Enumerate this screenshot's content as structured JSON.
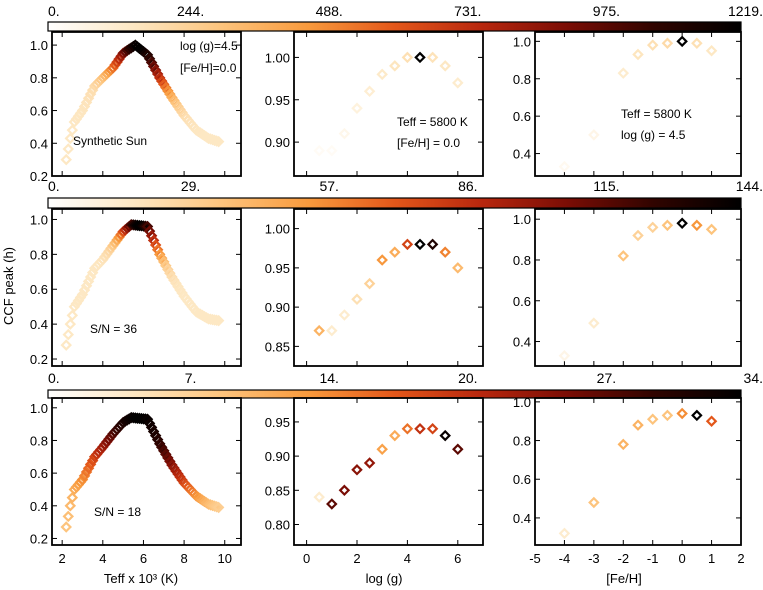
{
  "colormap": [
    "#ffffff",
    "#fde7c2",
    "#fdc47d",
    "#f89a3d",
    "#e3571a",
    "#b8270e",
    "#7a0d05",
    "#300400",
    "#000000"
  ],
  "shared": {
    "y_axis_label": "CCF peak (h)",
    "x_axis_labels": [
      "Teff x 10³ (K)",
      "log (g)",
      "[Fe/H]"
    ],
    "x_ticks": {
      "teff": [
        "2",
        "4",
        "6",
        "8",
        "10"
      ],
      "logg": [
        "0",
        "2",
        "4",
        "6"
      ],
      "feh": [
        "-5",
        "-4",
        "-3",
        "-2",
        "-1",
        "0",
        "1",
        "2"
      ]
    }
  },
  "chart_data": [
    {
      "type": "scatter",
      "row": 1,
      "colorbar": {
        "ticks": [
          "0.",
          "244.",
          "488.",
          "731.",
          "975.",
          "1219."
        ],
        "range": [
          0,
          1219
        ]
      },
      "panels": [
        {
          "x_variable": "Teff (10^3 K)",
          "xlim": [
            1.5,
            10.8
          ],
          "ylim": [
            0.2,
            1.08
          ],
          "y_ticks": [
            "0.2",
            "0.4",
            "0.6",
            "0.8",
            "1.0"
          ],
          "annotations": [
            "log (g)=4.5",
            "[Fe/H]=0.0",
            "Synthetic Sun"
          ],
          "profile": [
            [
              2.2,
              0.3
            ],
            [
              2.4,
              0.43
            ],
            [
              2.6,
              0.53
            ],
            [
              3.0,
              0.6
            ],
            [
              3.6,
              0.75
            ],
            [
              4.0,
              0.8
            ],
            [
              4.5,
              0.86
            ],
            [
              5.0,
              0.95
            ],
            [
              5.6,
              1.0
            ],
            [
              6.2,
              0.94
            ],
            [
              6.8,
              0.8
            ],
            [
              7.4,
              0.68
            ],
            [
              8.0,
              0.57
            ],
            [
              8.6,
              0.48
            ],
            [
              9.2,
              0.43
            ],
            [
              9.7,
              0.41
            ]
          ],
          "peak_x": 5.8,
          "x_step": 0.1,
          "sigma": 1.3
        },
        {
          "x_variable": "log (g)",
          "xlim": [
            -0.5,
            7.0
          ],
          "ylim": [
            0.86,
            1.03
          ],
          "y_ticks": [
            "0.90",
            "0.95",
            "1.00"
          ],
          "annotations": [
            "Teff = 5800 K",
            "[Fe/H] = 0.0"
          ],
          "points": [
            [
              0.5,
              0.89,
              0.02
            ],
            [
              1.0,
              0.89,
              0.02
            ],
            [
              1.5,
              0.91,
              0.04
            ],
            [
              2.0,
              0.94,
              0.07
            ],
            [
              2.5,
              0.96,
              0.09
            ],
            [
              3.0,
              0.98,
              0.11
            ],
            [
              3.5,
              0.99,
              0.13
            ],
            [
              4.0,
              1.0,
              0.15
            ],
            [
              4.5,
              1.0,
              1.0
            ],
            [
              5.0,
              1.0,
              0.14
            ],
            [
              5.5,
              0.99,
              0.12
            ],
            [
              6.0,
              0.97,
              0.1
            ]
          ]
        },
        {
          "x_variable": "[Fe/H]",
          "xlim": [
            -5,
            2
          ],
          "ylim": [
            0.28,
            1.05
          ],
          "y_ticks": [
            "0.4",
            "0.6",
            "0.8",
            "1.0"
          ],
          "annotations": [
            "Teff = 5800 K",
            "log (g) = 4.5"
          ],
          "points": [
            [
              -4.0,
              0.33,
              0.03
            ],
            [
              -3.0,
              0.5,
              0.05
            ],
            [
              -2.0,
              0.83,
              0.1
            ],
            [
              -1.5,
              0.93,
              0.13
            ],
            [
              -1.0,
              0.98,
              0.15
            ],
            [
              -0.5,
              0.99,
              0.17
            ],
            [
              0.0,
              1.0,
              1.0
            ],
            [
              0.5,
              0.99,
              0.15
            ],
            [
              1.0,
              0.95,
              0.12
            ]
          ]
        }
      ]
    },
    {
      "type": "scatter",
      "row": 2,
      "colorbar": {
        "ticks": [
          "0.",
          "29.",
          "57.",
          "86.",
          "115.",
          "144."
        ],
        "range": [
          0,
          144
        ]
      },
      "panels": [
        {
          "x_variable": "Teff (10^3 K)",
          "xlim": [
            1.5,
            10.8
          ],
          "ylim": [
            0.16,
            1.06
          ],
          "y_ticks": [
            "0.2",
            "0.4",
            "0.6",
            "0.8",
            "1.0"
          ],
          "annotations": [
            "S/N = 36"
          ],
          "profile": [
            [
              2.2,
              0.28
            ],
            [
              2.4,
              0.4
            ],
            [
              2.6,
              0.5
            ],
            [
              3.0,
              0.57
            ],
            [
              3.6,
              0.72
            ],
            [
              4.0,
              0.77
            ],
            [
              4.5,
              0.85
            ],
            [
              5.0,
              0.93
            ],
            [
              5.4,
              0.97
            ],
            [
              6.2,
              0.96
            ],
            [
              6.8,
              0.8
            ],
            [
              7.4,
              0.67
            ],
            [
              8.0,
              0.56
            ],
            [
              8.6,
              0.47
            ],
            [
              9.2,
              0.43
            ],
            [
              9.7,
              0.42
            ]
          ],
          "peak_x": 5.8,
          "x_step": 0.1,
          "sigma": 0.9
        },
        {
          "x_variable": "log (g)",
          "xlim": [
            -0.5,
            7.0
          ],
          "ylim": [
            0.825,
            1.025
          ],
          "y_ticks": [
            "0.85",
            "0.90",
            "0.95",
            "1.00"
          ],
          "annotations": [],
          "points": [
            [
              0.5,
              0.87,
              0.3
            ],
            [
              1.0,
              0.87,
              0.1
            ],
            [
              1.5,
              0.89,
              0.1
            ],
            [
              2.0,
              0.91,
              0.15
            ],
            [
              2.5,
              0.93,
              0.2
            ],
            [
              3.0,
              0.96,
              0.38
            ],
            [
              3.5,
              0.97,
              0.32
            ],
            [
              4.0,
              0.98,
              0.55
            ],
            [
              4.5,
              0.98,
              1.0
            ],
            [
              5.0,
              0.98,
              0.92
            ],
            [
              5.5,
              0.97,
              0.42
            ],
            [
              6.0,
              0.95,
              0.28
            ]
          ]
        },
        {
          "x_variable": "[Fe/H]",
          "xlim": [
            -5,
            2
          ],
          "ylim": [
            0.28,
            1.05
          ],
          "y_ticks": [
            "0.4",
            "0.6",
            "0.8",
            "1.0"
          ],
          "annotations": [],
          "points": [
            [
              -4.0,
              0.33,
              0.05
            ],
            [
              -3.0,
              0.49,
              0.1
            ],
            [
              -2.0,
              0.82,
              0.25
            ],
            [
              -1.5,
              0.92,
              0.2
            ],
            [
              -1.0,
              0.96,
              0.2
            ],
            [
              -0.5,
              0.97,
              0.25
            ],
            [
              0.0,
              0.98,
              1.0
            ],
            [
              0.5,
              0.97,
              0.38
            ],
            [
              1.0,
              0.95,
              0.25
            ]
          ]
        }
      ]
    },
    {
      "type": "scatter",
      "row": 3,
      "colorbar": {
        "ticks": [
          "0.",
          "7.",
          "14.",
          "20.",
          "27.",
          "34."
        ],
        "range": [
          0,
          34
        ]
      },
      "panels": [
        {
          "x_variable": "Teff (10^3 K)",
          "xlim": [
            1.5,
            10.8
          ],
          "ylim": [
            0.16,
            1.06
          ],
          "y_ticks": [
            "0.2",
            "0.4",
            "0.6",
            "0.8",
            "1.0"
          ],
          "annotations": [
            "S/N = 18"
          ],
          "profile": [
            [
              2.2,
              0.27
            ],
            [
              2.4,
              0.4
            ],
            [
              2.6,
              0.5
            ],
            [
              3.0,
              0.56
            ],
            [
              3.6,
              0.7
            ],
            [
              4.0,
              0.76
            ],
            [
              4.5,
              0.84
            ],
            [
              5.0,
              0.91
            ],
            [
              5.4,
              0.94
            ],
            [
              6.2,
              0.93
            ],
            [
              6.8,
              0.78
            ],
            [
              7.4,
              0.65
            ],
            [
              8.0,
              0.54
            ],
            [
              8.6,
              0.46
            ],
            [
              9.2,
              0.41
            ],
            [
              9.7,
              0.39
            ]
          ],
          "peak_x": 5.8,
          "x_step": 0.1,
          "sigma": 2.6
        },
        {
          "x_variable": "log (g)",
          "xlim": [
            -0.5,
            7.0
          ],
          "ylim": [
            0.77,
            0.985
          ],
          "y_ticks": [
            "0.80",
            "0.85",
            "0.90",
            "0.95"
          ],
          "annotations": [],
          "points": [
            [
              0.5,
              0.84,
              0.1
            ],
            [
              1.0,
              0.83,
              0.8
            ],
            [
              1.5,
              0.85,
              0.75
            ],
            [
              2.0,
              0.88,
              0.72
            ],
            [
              2.5,
              0.89,
              0.7
            ],
            [
              3.0,
              0.91,
              0.35
            ],
            [
              3.5,
              0.93,
              0.32
            ],
            [
              4.0,
              0.94,
              0.45
            ],
            [
              4.5,
              0.94,
              0.6
            ],
            [
              5.0,
              0.94,
              0.55
            ],
            [
              5.5,
              0.93,
              0.98
            ],
            [
              6.0,
              0.91,
              0.8
            ]
          ]
        },
        {
          "x_variable": "[Fe/H]",
          "xlim": [
            -5,
            2
          ],
          "ylim": [
            0.26,
            1.02
          ],
          "y_ticks": [
            "0.4",
            "0.6",
            "0.8",
            "1.0"
          ],
          "annotations": [],
          "points": [
            [
              -4.0,
              0.32,
              0.1
            ],
            [
              -3.0,
              0.48,
              0.25
            ],
            [
              -2.0,
              0.78,
              0.3
            ],
            [
              -1.5,
              0.88,
              0.3
            ],
            [
              -1.0,
              0.91,
              0.25
            ],
            [
              -0.5,
              0.93,
              0.25
            ],
            [
              0.0,
              0.94,
              0.4
            ],
            [
              0.5,
              0.93,
              1.0
            ],
            [
              1.0,
              0.9,
              0.5
            ]
          ]
        }
      ]
    }
  ]
}
